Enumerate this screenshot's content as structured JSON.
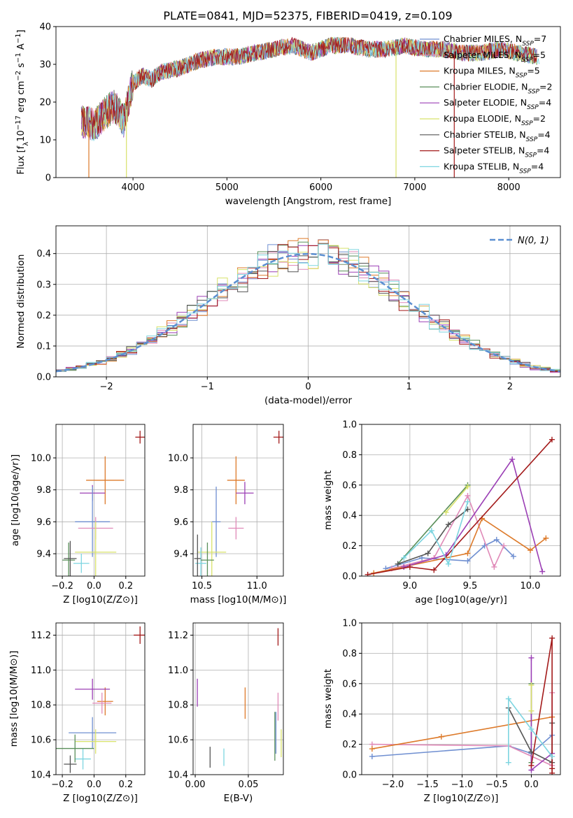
{
  "title": "PLATE=0841, MJD=52375, FIBERID=0419, z=0.109",
  "colors": {
    "chabrier_miles": "#6f8fd1",
    "salpeter_miles": "#e08ab8",
    "kroupa_miles": "#dd7a2a",
    "chabrier_elodie": "#5a8f5a",
    "salpeter_elodie": "#9b3fb5",
    "kroupa_elodie": "#d8e26a",
    "chabrier_stelib": "#555555",
    "salpeter_stelib": "#a31a1a",
    "kroupa_stelib": "#7dd5e0",
    "normal": "#5b8fd1"
  },
  "chart_data": [
    {
      "type": "line",
      "id": "spectrum",
      "xlabel": "wavelength [Angstrom, rest frame]",
      "ylabel": "Flux [f_λ10^−17 erg cm^−2 s^−1 A^−1]",
      "xlim": [
        3180,
        8550
      ],
      "ylim": [
        0,
        40
      ],
      "xticks": [
        4000,
        5000,
        6000,
        7000,
        8000
      ],
      "yticks": [
        0,
        10,
        20,
        30,
        40
      ],
      "legend_position": "top-right",
      "legend": [
        {
          "label": "Chabrier MILES, N",
          "sub": "SSP",
          "n": "=7",
          "color": "#6f8fd1"
        },
        {
          "label": "Salpeter MILES, N",
          "sub": "SSP",
          "n": "=5",
          "color": "#e08ab8"
        },
        {
          "label": "Kroupa MILES, N",
          "sub": "SSP",
          "n": "=5",
          "color": "#dd7a2a"
        },
        {
          "label": "Chabrier ELODIE, N",
          "sub": "SSP",
          "n": "=2",
          "color": "#5a8f5a"
        },
        {
          "label": "Salpeter ELODIE, N",
          "sub": "SSP",
          "n": "=4",
          "color": "#9b3fb5"
        },
        {
          "label": "Kroupa ELODIE, N",
          "sub": "SSP",
          "n": "=2",
          "color": "#d8e26a"
        },
        {
          "label": "Chabrier STELIB, N",
          "sub": "SSP",
          "n": "=4",
          "color": "#555555"
        },
        {
          "label": "Salpeter STELIB, N",
          "sub": "SSP",
          "n": "=4",
          "color": "#a31a1a"
        },
        {
          "label": "Kroupa STELIB, N",
          "sub": "SSP",
          "n": "=4",
          "color": "#7dd5e0"
        }
      ],
      "envelope": {
        "x": [
          3450,
          3600,
          3700,
          3800,
          3900,
          4000,
          4100,
          4200,
          4300,
          4500,
          4700,
          4900,
          5100,
          5300,
          5500,
          5700,
          5900,
          6100,
          6300,
          6500,
          6700,
          6900,
          7100,
          7300,
          7500,
          7700,
          7900,
          8100,
          8300
        ],
        "y": [
          15,
          14,
          17,
          19,
          15,
          25,
          27,
          26,
          28,
          29,
          31,
          32,
          32,
          33,
          34,
          35,
          33,
          35,
          35,
          34,
          34,
          35,
          34,
          34,
          33,
          33,
          34,
          33,
          32
        ]
      },
      "drops": [
        {
          "x": 3530,
          "color": "#dd7a2a"
        },
        {
          "x": 3930,
          "color": "#d8e26a"
        },
        {
          "x": 6800,
          "color": "#d8e26a"
        },
        {
          "x": 7420,
          "color": "#a31a1a"
        }
      ]
    },
    {
      "type": "bar",
      "id": "residual_histogram",
      "xlabel": "(data-model)/error",
      "ylabel": "Normed distribution",
      "xlim": [
        -2.5,
        2.5
      ],
      "ylim": [
        0,
        0.49
      ],
      "xticks": [
        -2,
        -1,
        0,
        1,
        2
      ],
      "yticks": [
        0.0,
        0.1,
        0.2,
        0.3,
        0.4
      ],
      "legend_position": "top-right",
      "normal_curve": {
        "label": "N(0, 1)",
        "mean": 0,
        "sigma": 1
      },
      "bins": {
        "start": -2.5,
        "width": 0.1,
        "count": 50
      },
      "series": [
        {
          "color": "#6f8fd1",
          "seed": 1
        },
        {
          "color": "#e08ab8",
          "seed": 2
        },
        {
          "color": "#dd7a2a",
          "seed": 3
        },
        {
          "color": "#5a8f5a",
          "seed": 4
        },
        {
          "color": "#9b3fb5",
          "seed": 5
        },
        {
          "color": "#d8e26a",
          "seed": 6
        },
        {
          "color": "#555555",
          "seed": 7
        },
        {
          "color": "#a31a1a",
          "seed": 8
        },
        {
          "color": "#7dd5e0",
          "seed": 9
        }
      ]
    },
    {
      "type": "scatter",
      "id": "age_vs_Z",
      "xlabel": "Z [log10(Z/Z⊙)]",
      "ylabel": "age [log10(age/yr)]",
      "xlim": [
        -0.24,
        0.32
      ],
      "ylim": [
        9.26,
        10.21
      ],
      "xticks": [
        -0.2,
        0.0,
        0.2
      ],
      "yticks": [
        9.4,
        9.6,
        9.8,
        10.0
      ],
      "points": [
        {
          "x": 0.07,
          "y": 9.86,
          "xerr": 0.12,
          "yerr": 0.15,
          "color": "#dd7a2a"
        },
        {
          "x": -0.01,
          "y": 9.78,
          "xerr": 0.08,
          "yerr": 0.05,
          "color": "#9b3fb5"
        },
        {
          "x": -0.01,
          "y": 9.6,
          "xerr": 0.11,
          "yerr": 0.22,
          "color": "#6f8fd1"
        },
        {
          "x": 0.01,
          "y": 9.56,
          "xerr": 0.11,
          "yerr": 0.07,
          "color": "#e08ab8"
        },
        {
          "x": 0.01,
          "y": 9.41,
          "xerr": 0.13,
          "yerr": 0.19,
          "color": "#d8e26a"
        },
        {
          "x": -0.08,
          "y": 9.34,
          "xerr": 0.05,
          "yerr": 0.06,
          "color": "#7dd5e0"
        },
        {
          "x": -0.16,
          "y": 9.36,
          "xerr": 0.04,
          "yerr": 0.11,
          "color": "#5a8f5a"
        },
        {
          "x": -0.15,
          "y": 9.37,
          "xerr": 0.04,
          "yerr": 0.11,
          "color": "#555555"
        },
        {
          "x": 0.29,
          "y": 10.13,
          "xerr": 0.03,
          "yerr": 0.04,
          "color": "#a31a1a"
        }
      ]
    },
    {
      "type": "scatter",
      "id": "age_vs_mass",
      "xlabel": "mass [log10(M/M⊙)]",
      "ylabel": "",
      "xlim": [
        10.42,
        11.24
      ],
      "ylim": [
        9.26,
        10.21
      ],
      "xticks": [
        10.5,
        11.0
      ],
      "yticks": [
        9.4,
        9.6,
        9.8,
        10.0
      ],
      "points": [
        {
          "x": 10.81,
          "y": 9.86,
          "xerr": 0.08,
          "yerr": 0.15,
          "color": "#dd7a2a"
        },
        {
          "x": 10.89,
          "y": 9.78,
          "xerr": 0.08,
          "yerr": 0.07,
          "color": "#9b3fb5"
        },
        {
          "x": 10.63,
          "y": 9.6,
          "xerr": 0.04,
          "yerr": 0.22,
          "color": "#6f8fd1"
        },
        {
          "x": 10.81,
          "y": 9.56,
          "xerr": 0.07,
          "yerr": 0.07,
          "color": "#e08ab8"
        },
        {
          "x": 10.59,
          "y": 9.41,
          "xerr": 0.13,
          "yerr": 0.19,
          "color": "#d8e26a"
        },
        {
          "x": 10.49,
          "y": 9.34,
          "xerr": 0.05,
          "yerr": 0.1,
          "color": "#7dd5e0"
        },
        {
          "x": 10.55,
          "y": 9.36,
          "xerr": 0.06,
          "yerr": 0.11,
          "color": "#5a8f5a"
        },
        {
          "x": 10.46,
          "y": 9.37,
          "xerr": 0.03,
          "yerr": 0.15,
          "color": "#555555"
        },
        {
          "x": 11.2,
          "y": 10.13,
          "xerr": 0.05,
          "yerr": 0.04,
          "color": "#a31a1a"
        }
      ]
    },
    {
      "type": "line",
      "id": "weight_vs_age",
      "xlabel": "age [log10(age/yr)]",
      "ylabel": "mass weight",
      "xlim": [
        8.6,
        10.25
      ],
      "ylim": [
        0,
        1.0
      ],
      "xticks": [
        9.0,
        9.5,
        10.0
      ],
      "yticks": [
        0.0,
        0.2,
        0.4,
        0.6,
        0.8,
        1.0
      ],
      "series": [
        {
          "color": "#6f8fd1",
          "x": [
            8.8,
            9.1,
            9.48,
            9.62,
            9.72,
            9.86
          ],
          "y": [
            0.05,
            0.12,
            0.1,
            0.2,
            0.24,
            0.13
          ]
        },
        {
          "color": "#e08ab8",
          "x": [
            8.85,
            9.2,
            9.48,
            9.7,
            9.78
          ],
          "y": [
            0.05,
            0.12,
            0.53,
            0.06,
            0.2
          ]
        },
        {
          "color": "#dd7a2a",
          "x": [
            8.7,
            9.48,
            9.6,
            10.0,
            10.13
          ],
          "y": [
            0.02,
            0.15,
            0.38,
            0.17,
            0.25
          ]
        },
        {
          "color": "#5a8f5a",
          "x": [
            8.9,
            9.48
          ],
          "y": [
            0.08,
            0.6
          ]
        },
        {
          "color": "#9b3fb5",
          "x": [
            8.95,
            9.3,
            9.85,
            10.1
          ],
          "y": [
            0.06,
            0.14,
            0.77,
            0.03
          ]
        },
        {
          "color": "#d8e26a",
          "x": [
            9.3,
            9.48
          ],
          "y": [
            0.42,
            0.59
          ]
        },
        {
          "color": "#555555",
          "x": [
            8.9,
            9.15,
            9.32,
            9.48
          ],
          "y": [
            0.08,
            0.15,
            0.34,
            0.44
          ]
        },
        {
          "color": "#a31a1a",
          "x": [
            8.65,
            9.0,
            9.2,
            10.18
          ],
          "y": [
            0.01,
            0.06,
            0.04,
            0.9
          ]
        },
        {
          "color": "#7dd5e0",
          "x": [
            8.95,
            9.18,
            9.32,
            9.48
          ],
          "y": [
            0.12,
            0.3,
            0.08,
            0.49
          ]
        }
      ]
    },
    {
      "type": "scatter",
      "id": "mass_vs_Z",
      "xlabel": "Z [log10(Z/Z⊙)]",
      "ylabel": "mass [log10(M/M⊙)]",
      "xlim": [
        -0.24,
        0.32
      ],
      "ylim": [
        10.4,
        11.27
      ],
      "xticks": [
        -0.2,
        0.0,
        0.2
      ],
      "yticks": [
        10.4,
        10.6,
        10.8,
        11.0,
        11.2
      ],
      "points": [
        {
          "x": 0.07,
          "y": 10.82,
          "xerr": 0.05,
          "yerr": 0.08,
          "color": "#dd7a2a"
        },
        {
          "x": -0.01,
          "y": 10.89,
          "xerr": 0.11,
          "yerr": 0.06,
          "color": "#9b3fb5"
        },
        {
          "x": -0.01,
          "y": 10.64,
          "xerr": 0.15,
          "yerr": 0.09,
          "color": "#6f8fd1"
        },
        {
          "x": 0.05,
          "y": 10.81,
          "xerr": 0.06,
          "yerr": 0.06,
          "color": "#e08ab8"
        },
        {
          "x": 0.01,
          "y": 10.59,
          "xerr": 0.13,
          "yerr": 0.07,
          "color": "#d8e26a"
        },
        {
          "x": -0.07,
          "y": 10.49,
          "xerr": 0.05,
          "yerr": 0.06,
          "color": "#7dd5e0"
        },
        {
          "x": -0.12,
          "y": 10.55,
          "xerr": 0.12,
          "yerr": 0.08,
          "color": "#5a8f5a"
        },
        {
          "x": -0.15,
          "y": 10.46,
          "xerr": 0.04,
          "yerr": 0.05,
          "color": "#555555"
        },
        {
          "x": 0.29,
          "y": 11.2,
          "xerr": 0.04,
          "yerr": 0.05,
          "color": "#a31a1a"
        }
      ]
    },
    {
      "type": "scatter",
      "id": "mass_vs_ebv",
      "xlabel": "E(B-V)",
      "ylabel": "",
      "xlim": [
        -0.002,
        0.083
      ],
      "ylim": [
        10.4,
        11.27
      ],
      "xticks": [
        0.0,
        0.05
      ],
      "xtick_labels": [
        "0.00",
        "0.05"
      ],
      "yticks": [
        10.4,
        10.6,
        10.8,
        11.0,
        11.2
      ],
      "points": [
        {
          "x": 0.047,
          "y": 10.81,
          "yerr": 0.09,
          "color": "#dd7a2a"
        },
        {
          "x": 0.002,
          "y": 10.87,
          "yerr": 0.08,
          "color": "#9b3fb5"
        },
        {
          "x": 0.076,
          "y": 10.64,
          "yerr": 0.12,
          "color": "#6f8fd1"
        },
        {
          "x": 0.078,
          "y": 10.79,
          "yerr": 0.08,
          "color": "#e08ab8"
        },
        {
          "x": 0.081,
          "y": 10.58,
          "yerr": 0.08,
          "color": "#d8e26a"
        },
        {
          "x": 0.027,
          "y": 10.5,
          "yerr": 0.05,
          "color": "#7dd5e0"
        },
        {
          "x": 0.075,
          "y": 10.62,
          "yerr": 0.14,
          "color": "#5a8f5a"
        },
        {
          "x": 0.014,
          "y": 10.5,
          "yerr": 0.06,
          "color": "#555555"
        },
        {
          "x": 0.078,
          "y": 11.19,
          "yerr": 0.05,
          "color": "#a31a1a"
        }
      ]
    },
    {
      "type": "line",
      "id": "weight_vs_Z",
      "xlabel": "Z [log10(Z/Z⊙)]",
      "ylabel": "mass weight",
      "xlim": [
        -2.45,
        0.42
      ],
      "ylim": [
        0,
        1.0
      ],
      "xticks": [
        -2.0,
        -1.5,
        -1.0,
        -0.5,
        0.0
      ],
      "yticks": [
        0.0,
        0.2,
        0.4,
        0.6,
        0.8,
        1.0
      ],
      "series": [
        {
          "color": "#6f8fd1",
          "x": [
            -2.3,
            -0.33,
            0.0,
            0.3
          ],
          "y": [
            0.12,
            0.19,
            0.14,
            0.26
          ]
        },
        {
          "color": "#e08ab8",
          "x": [
            -2.3,
            -0.33,
            0.3,
            0.3
          ],
          "y": [
            0.2,
            0.19,
            0.06,
            0.54
          ]
        },
        {
          "color": "#dd7a2a",
          "x": [
            -2.3,
            -1.3,
            0.3
          ],
          "y": [
            0.17,
            0.25,
            0.38
          ]
        },
        {
          "color": "#5a8f5a",
          "x": [
            0.0,
            0.0
          ],
          "y": [
            0.08,
            0.6
          ]
        },
        {
          "color": "#9b3fb5",
          "x": [
            0.0,
            0.0,
            0.3
          ],
          "y": [
            0.77,
            0.03,
            0.14
          ]
        },
        {
          "color": "#d8e26a",
          "x": [
            0.0,
            0.0
          ],
          "y": [
            0.42,
            0.59
          ]
        },
        {
          "color": "#555555",
          "x": [
            -0.33,
            0.0,
            0.3,
            0.3
          ],
          "y": [
            0.44,
            0.15,
            0.08,
            0.34
          ]
        },
        {
          "color": "#a31a1a",
          "x": [
            0.0,
            0.3,
            0.3,
            0.3
          ],
          "y": [
            0.06,
            0.9,
            0.04,
            0.01
          ]
        },
        {
          "color": "#7dd5e0",
          "x": [
            -0.33,
            -0.33,
            0.0,
            0.3
          ],
          "y": [
            0.08,
            0.5,
            0.3,
            0.12
          ]
        }
      ]
    }
  ]
}
